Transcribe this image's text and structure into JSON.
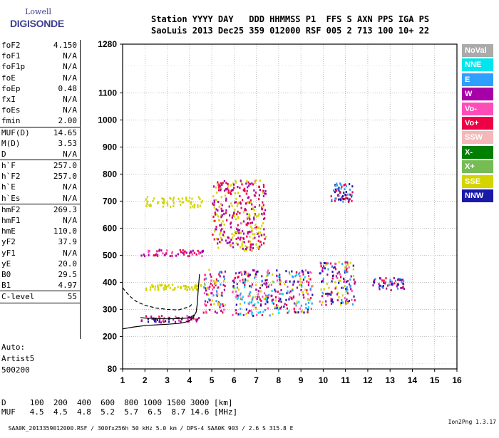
{
  "logo": {
    "line1": "Lowell",
    "line2": "DIGISONDE"
  },
  "header": {
    "line1": "Station YYYY DAY   DDD HHMMSS P1  FFS S AXN PPS IGA PS",
    "line2": "SaoLuis 2013 Dec25 359 012000 RSF 005 2 713 100 10+ 22"
  },
  "params": [
    {
      "name": "foF2",
      "value": "4.150"
    },
    {
      "name": "foF1",
      "value": "N/A"
    },
    {
      "name": "foF1p",
      "value": "N/A"
    },
    {
      "name": "foE",
      "value": "N/A"
    },
    {
      "name": "foEp",
      "value": "0.48"
    },
    {
      "name": "fxI",
      "value": "N/A"
    },
    {
      "name": "foEs",
      "value": "N/A"
    },
    {
      "name": "fmin",
      "value": "2.00"
    },
    {
      "name": "MUF(D)",
      "value": "14.65"
    },
    {
      "name": "M(D)",
      "value": "3.53"
    },
    {
      "name": "D",
      "value": "N/A"
    },
    {
      "name": "h`F",
      "value": "257.0"
    },
    {
      "name": "h`F2",
      "value": "257.0"
    },
    {
      "name": "h`E",
      "value": "N/A"
    },
    {
      "name": "h`Es",
      "value": "N/A"
    },
    {
      "name": "hmF2",
      "value": "269.3"
    },
    {
      "name": "hmF1",
      "value": "N/A"
    },
    {
      "name": "hmE",
      "value": "110.0"
    },
    {
      "name": "yF2",
      "value": "37.9"
    },
    {
      "name": "yF1",
      "value": "N/A"
    },
    {
      "name": "yE",
      "value": "20.0"
    },
    {
      "name": "B0",
      "value": "29.5"
    },
    {
      "name": "B1",
      "value": "4.97"
    },
    {
      "name": "C-level",
      "value": "55"
    }
  ],
  "autoscaling": {
    "line1": "Auto:",
    "line2": "Artist5",
    "line3": "500200"
  },
  "dmuf": {
    "line1": "D     100  200  400  600  800 1000 1500 3000 [km]",
    "line2": "MUF   4.5  4.5  4.8  5.2  5.7  6.5  8.7 14.6 [MHz]"
  },
  "footer": {
    "left": "SAA0K_2013359012000.RSF / 300fx256h 50 kHz 5.0 km / DPS-4 SAA0K 903 / 2.6 S 315.8 E",
    "right": "Ion2Png 1.3.17"
  },
  "legend": [
    {
      "label": "NoVal",
      "color": "#aaaaaa"
    },
    {
      "label": "NNE",
      "color": "#00e5ee"
    },
    {
      "label": "E",
      "color": "#2f9fff"
    },
    {
      "label": "W",
      "color": "#a800a8"
    },
    {
      "label": "Vo-",
      "color": "#ff4db8"
    },
    {
      "label": "Vo+",
      "color": "#ee0044"
    },
    {
      "label": "SSW",
      "color": "#f4b8b8"
    },
    {
      "label": "X-",
      "color": "#007f00"
    },
    {
      "label": "X+",
      "color": "#77bb55"
    },
    {
      "label": "SSE",
      "color": "#d4d400"
    },
    {
      "label": "NNW",
      "color": "#1a1aa8"
    }
  ],
  "chart_data": {
    "type": "scatter",
    "title": "",
    "xlabel": "",
    "ylabel": "",
    "xlim": [
      1,
      16
    ],
    "ylim": [
      80,
      1280
    ],
    "x_ticks": [
      1,
      2,
      3,
      4,
      5,
      6,
      7,
      8,
      9,
      10,
      11,
      12,
      13,
      14,
      15,
      16
    ],
    "y_ticks": [
      80,
      200,
      300,
      400,
      500,
      600,
      700,
      800,
      900,
      1000,
      1100,
      1280
    ],
    "grid": true,
    "legend_position": "right",
    "trace_clusters": [
      {
        "name": "F-layer trace (low band)",
        "x_range": [
          1.8,
          4.4
        ],
        "y_range": [
          255,
          280
        ],
        "colors": [
          "#ee0044",
          "#ff4db8",
          "#a800a8",
          "#1a1aa8"
        ]
      },
      {
        "name": "second hop",
        "x_range": [
          1.8,
          4.6
        ],
        "y_range": [
          500,
          525
        ],
        "colors": [
          "#ee0044",
          "#ff4db8",
          "#a800a8"
        ]
      },
      {
        "name": "SSE oblique",
        "x_range": [
          2.0,
          4.6
        ],
        "y_range": [
          680,
          720
        ],
        "colors": [
          "#d4d400"
        ]
      },
      {
        "name": "SSE oblique low",
        "x_range": [
          2.0,
          4.5
        ],
        "y_range": [
          375,
          395
        ],
        "colors": [
          "#d4d400"
        ]
      },
      {
        "name": "spread F 5",
        "x_range": [
          4.6,
          5.6
        ],
        "y_range": [
          290,
          450
        ],
        "colors": [
          "#ee0044",
          "#ff4db8",
          "#a800a8",
          "#d4d400",
          "#2f9fff"
        ]
      },
      {
        "name": "spread F 6-7",
        "x_range": [
          5.9,
          7.8
        ],
        "y_range": [
          280,
          450
        ],
        "colors": [
          "#ee0044",
          "#ff4db8",
          "#a800a8",
          "#d4d400",
          "#2f9fff",
          "#1a1aa8",
          "#00e5ee"
        ]
      },
      {
        "name": "spread F 8-9",
        "x_range": [
          7.8,
          9.5
        ],
        "y_range": [
          290,
          450
        ],
        "colors": [
          "#ee0044",
          "#ff4db8",
          "#a800a8",
          "#d4d400",
          "#2f9fff",
          "#1a1aa8",
          "#00e5ee"
        ]
      },
      {
        "name": "spread F 10-11",
        "x_range": [
          9.8,
          11.4
        ],
        "y_range": [
          320,
          480
        ],
        "colors": [
          "#ee0044",
          "#ff4db8",
          "#a800a8",
          "#d4d400",
          "#2f9fff",
          "#1a1aa8"
        ]
      },
      {
        "name": "spread F 12-13",
        "x_range": [
          12.1,
          13.6
        ],
        "y_range": [
          375,
          420
        ],
        "colors": [
          "#2f9fff",
          "#1a1aa8",
          "#a800a8",
          "#ee0044"
        ]
      },
      {
        "name": "upper scatter 5-7",
        "x_range": [
          5.0,
          7.4
        ],
        "y_range": [
          520,
          780
        ],
        "colors": [
          "#d4d400",
          "#ee0044",
          "#a800a8"
        ]
      },
      {
        "name": "upper scatter 10-11",
        "x_range": [
          10.3,
          11.3
        ],
        "y_range": [
          700,
          770
        ],
        "colors": [
          "#2f9fff",
          "#ee0044",
          "#1a1aa8"
        ]
      }
    ],
    "profile_curves": [
      {
        "name": "solid profile",
        "style": "solid",
        "color": "#000000",
        "points": [
          [
            1,
            228
          ],
          [
            1.5,
            235
          ],
          [
            2,
            240
          ],
          [
            2.5,
            243
          ],
          [
            3,
            245
          ],
          [
            3.5,
            248
          ],
          [
            3.8,
            252
          ],
          [
            4.0,
            258
          ],
          [
            4.15,
            268
          ],
          [
            4.3,
            290
          ],
          [
            4.35,
            320
          ],
          [
            4.4,
            380
          ],
          [
            4.45,
            430
          ]
        ]
      },
      {
        "name": "dashed profile",
        "style": "dashed",
        "color": "#000000",
        "points": [
          [
            1,
            380
          ],
          [
            1.3,
            350
          ],
          [
            1.6,
            330
          ],
          [
            2.0,
            315
          ],
          [
            2.5,
            305
          ],
          [
            3.0,
            300
          ],
          [
            3.5,
            298
          ],
          [
            3.8,
            305
          ],
          [
            4.0,
            310
          ],
          [
            4.1,
            318
          ]
        ]
      },
      {
        "name": "trace fit",
        "style": "solid",
        "color": "#000000",
        "points": [
          [
            1.8,
            270
          ],
          [
            2.0,
            268
          ],
          [
            2.5,
            266
          ],
          [
            3.0,
            265
          ],
          [
            3.5,
            266
          ],
          [
            3.9,
            268
          ],
          [
            4.1,
            272
          ],
          [
            4.2,
            280
          ]
        ]
      }
    ]
  }
}
